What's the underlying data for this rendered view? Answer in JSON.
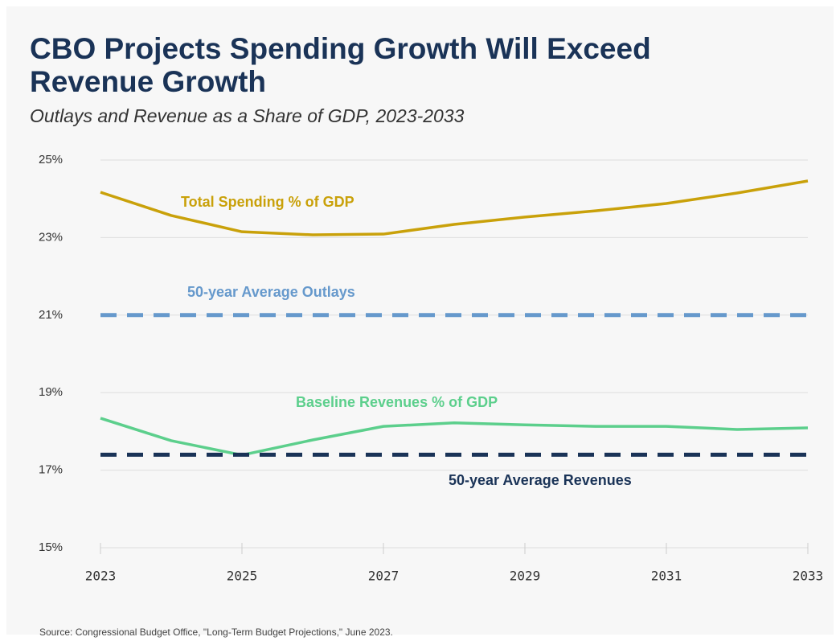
{
  "chart_data": {
    "type": "line",
    "title": "CBO Projects Spending Growth Will Exceed Revenue Growth",
    "subtitle": "Outlays and Revenue as a Share of GDP, 2023-2033",
    "source": "Source: Congressional Budget Office, \"Long-Term Budget Projections,\" June 2023.",
    "x": [
      2023,
      2024,
      2025,
      2026,
      2027,
      2028,
      2029,
      2030,
      2031,
      2032,
      2033
    ],
    "xlim": [
      2023,
      2033
    ],
    "xticks": [
      2023,
      2025,
      2027,
      2029,
      2031,
      2033
    ],
    "ylim": [
      15,
      25
    ],
    "yticks": [
      {
        "value": 15,
        "label": "15%"
      },
      {
        "value": 17,
        "label": "17%"
      },
      {
        "value": 19,
        "label": "19%"
      },
      {
        "value": 21,
        "label": "21%"
      },
      {
        "value": 23,
        "label": "23%"
      },
      {
        "value": 25,
        "label": "25%"
      }
    ],
    "grid": true,
    "series": [
      {
        "name": "Total Spending % of GDP",
        "color": "#c9a10a",
        "dashed": false,
        "values": [
          24.17,
          23.57,
          23.15,
          23.07,
          23.09,
          23.34,
          23.53,
          23.69,
          23.88,
          24.15,
          24.46
        ]
      },
      {
        "name": "50-year Average Outlays",
        "color": "#6699cc",
        "dashed": true,
        "values": [
          21.0,
          21.0,
          21.0,
          21.0,
          21.0,
          21.0,
          21.0,
          21.0,
          21.0,
          21.0,
          21.0
        ]
      },
      {
        "name": "Baseline Revenues % of GDP",
        "color": "#5ccf8c",
        "dashed": false,
        "values": [
          18.34,
          17.76,
          17.39,
          17.78,
          18.13,
          18.22,
          18.17,
          18.13,
          18.13,
          18.05,
          18.09
        ]
      },
      {
        "name": "50-year Average Revenues",
        "color": "#1a3357",
        "dashed": true,
        "values": [
          17.4,
          17.4,
          17.4,
          17.4,
          17.4,
          17.4,
          17.4,
          17.4,
          17.4,
          17.4,
          17.4
        ]
      }
    ]
  }
}
